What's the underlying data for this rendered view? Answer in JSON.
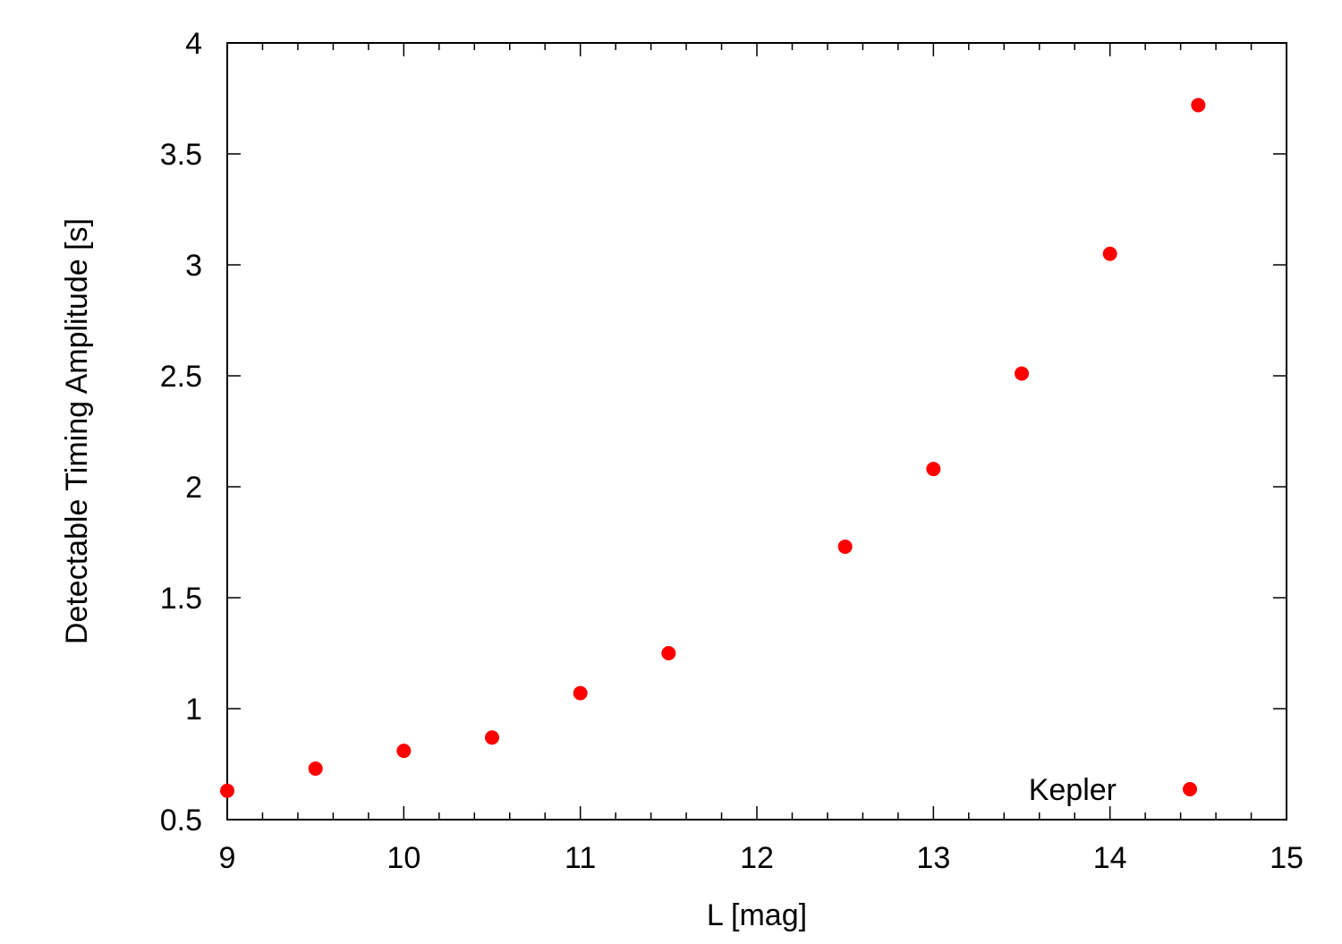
{
  "chart_data": {
    "type": "scatter",
    "title": "",
    "xlabel": "L [mag]",
    "ylabel": "Detectable Timing Amplitude [s]",
    "xlim": [
      9,
      15
    ],
    "ylim": [
      0.5,
      4
    ],
    "x_ticks": [
      9,
      10,
      11,
      12,
      13,
      14,
      15
    ],
    "x_tick_labels": [
      "9",
      "10",
      "11",
      "12",
      "13",
      "14",
      "15"
    ],
    "y_ticks": [
      0.5,
      1,
      1.5,
      2,
      2.5,
      3,
      3.5,
      4
    ],
    "y_tick_labels": [
      "0.5",
      "1",
      "1.5",
      "2",
      "2.5",
      "3",
      "3.5",
      "4"
    ],
    "grid": false,
    "legend_position": "bottom-right",
    "series": [
      {
        "name": "Kepler",
        "color": "#ff0000",
        "x": [
          9.0,
          9.5,
          10.0,
          10.5,
          11.0,
          11.5,
          12.5,
          13.0,
          13.5,
          14.0,
          14.5
        ],
        "y": [
          0.63,
          0.73,
          0.81,
          0.87,
          1.07,
          1.25,
          1.73,
          2.08,
          2.51,
          3.05,
          3.72
        ]
      }
    ]
  }
}
